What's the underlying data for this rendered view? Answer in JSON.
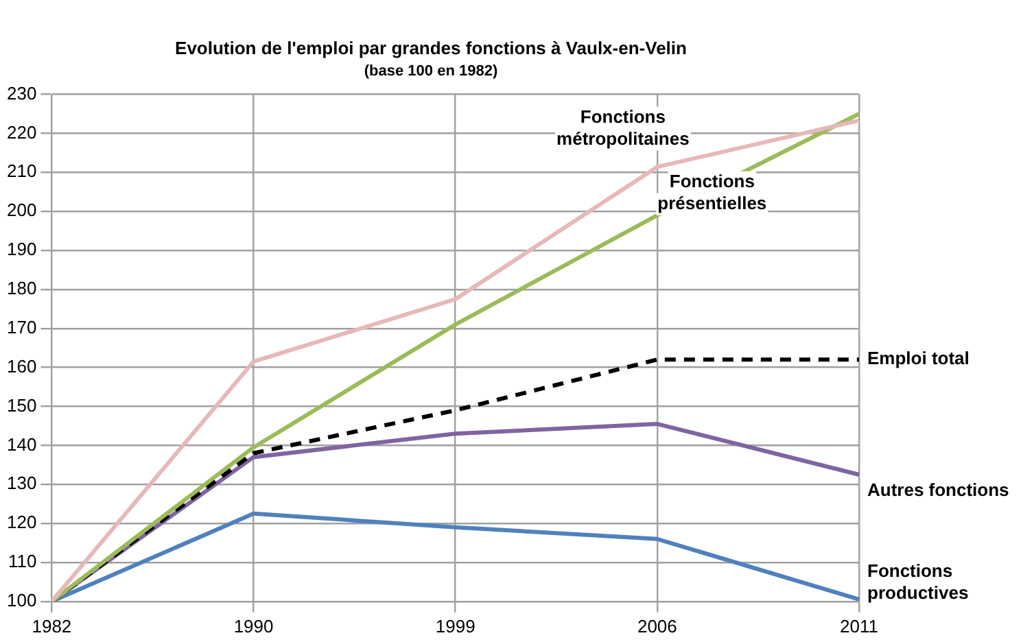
{
  "chart_data": {
    "type": "line",
    "title": "Evolution de l'emploi par grandes fonctions à Vaulx-en-Velin",
    "subtitle": "(base 100 en 1982)",
    "categories": [
      "1982",
      "1990",
      "1999",
      "2006",
      "2011"
    ],
    "series": [
      {
        "name": "Fonctions métropolitaines",
        "color": "#e6b9b8",
        "values": [
          100,
          161.5,
          177.5,
          211.4,
          223.3
        ]
      },
      {
        "name": "Fonctions présentielles",
        "color": "#9bbb59",
        "values": [
          100,
          139.5,
          171,
          199,
          225
        ]
      },
      {
        "name": "Emploi total",
        "color": "#000000",
        "line_style": "dashed",
        "values": [
          100,
          138,
          149,
          162,
          162
        ]
      },
      {
        "name": "Autres fonctions",
        "color": "#8064a2",
        "values": [
          100,
          137,
          143,
          145.5,
          132.5
        ]
      },
      {
        "name": "Fonctions productives",
        "color": "#4f81bd",
        "values": [
          100,
          122.5,
          119,
          116,
          100.5
        ]
      }
    ],
    "ylim": [
      100,
      230
    ],
    "yticks": [
      100,
      110,
      120,
      130,
      140,
      150,
      160,
      170,
      180,
      190,
      200,
      210,
      220,
      230
    ],
    "grid": true,
    "legend": false,
    "marker": "none",
    "line_style": "solid"
  }
}
